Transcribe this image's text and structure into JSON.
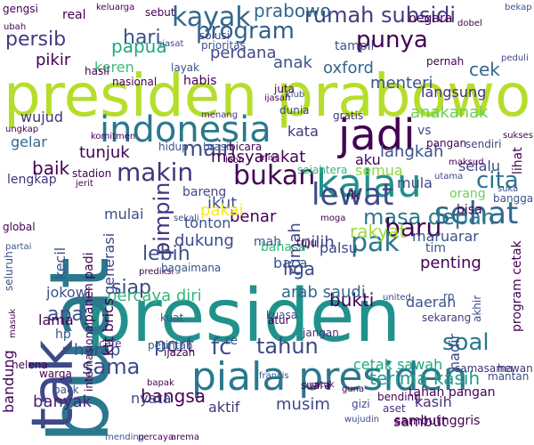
{
  "cloud": {
    "words": [
      {
        "text": "presiden prabowo",
        "color": "#b5de2b",
        "vertical": false
      },
      {
        "text": "presiden",
        "color": "#21918c",
        "vertical": false
      },
      {
        "text": "buat",
        "color": "#2a788e",
        "vertical": true
      },
      {
        "text": "piala presiden",
        "color": "#2a788e",
        "vertical": false
      },
      {
        "text": "indonesia",
        "color": "#2a788e",
        "vertical": false
      },
      {
        "text": "jadi",
        "color": "#440154",
        "vertical": false
      },
      {
        "text": "kalau",
        "color": "#21918c",
        "vertical": false
      },
      {
        "text": "tak",
        "color": "#3e4989",
        "vertical": true
      },
      {
        "text": "lewat",
        "color": "#3e4a89",
        "vertical": false
      },
      {
        "text": "sehat",
        "color": "#31688e",
        "vertical": false
      },
      {
        "text": "kayak",
        "color": "#31688e",
        "vertical": false
      },
      {
        "text": "rumah subsidi",
        "color": "#443a83",
        "vertical": false
      },
      {
        "text": "prabowo",
        "color": "#31688e",
        "vertical": false
      },
      {
        "text": "program",
        "color": "#355f8d",
        "vertical": false
      },
      {
        "text": "persib",
        "color": "#443983",
        "vertical": false
      },
      {
        "text": "hari",
        "color": "#3b528b",
        "vertical": false
      },
      {
        "text": "punya",
        "color": "#440154",
        "vertical": false
      },
      {
        "text": "makin",
        "color": "#46337e",
        "vertical": false
      },
      {
        "text": "main",
        "color": "#3e4a89",
        "vertical": false
      },
      {
        "text": "bukan",
        "color": "#440154",
        "vertical": false
      },
      {
        "text": "cita",
        "color": "#2c728e",
        "vertical": false
      },
      {
        "text": "masa depan",
        "color": "#2a788e",
        "vertical": false
      },
      {
        "text": "baru",
        "color": "#440154",
        "vertical": false
      },
      {
        "text": "pak",
        "color": "#2a788e",
        "vertical": false
      },
      {
        "text": "soal",
        "color": "#2a788e",
        "vertical": false
      },
      {
        "text": "lebih",
        "color": "#3b528b",
        "vertical": false
      },
      {
        "text": "siap",
        "color": "#3e4989",
        "vertical": false
      },
      {
        "text": "apa",
        "color": "#3b528b",
        "vertical": false
      },
      {
        "text": "sama",
        "color": "#3e4989",
        "vertical": false
      },
      {
        "text": "tahun",
        "color": "#3e4989",
        "vertical": false
      },
      {
        "text": "fc",
        "color": "#3b528b",
        "vertical": false
      },
      {
        "text": "port",
        "color": "#3b528b",
        "vertical": false
      },
      {
        "text": "bukti",
        "color": "#440154",
        "vertical": false
      },
      {
        "text": "dukung",
        "color": "#3e4989",
        "vertical": false
      },
      {
        "text": "rakyat",
        "color": "#9fda3a",
        "vertical": false
      },
      {
        "text": "percaya diri",
        "color": "#35b779",
        "vertical": false
      },
      {
        "text": "papua",
        "color": "#21a685",
        "vertical": false
      },
      {
        "text": "cek",
        "color": "#31688e",
        "vertical": false
      },
      {
        "text": "menteri",
        "color": "#3b528b",
        "vertical": false
      },
      {
        "text": "oxford",
        "color": "#31688e",
        "vertical": false
      },
      {
        "text": "langsung",
        "color": "#46337e",
        "vertical": false
      },
      {
        "text": "anakanak",
        "color": "#6ccd5a",
        "vertical": false
      },
      {
        "text": "baik",
        "color": "#440154",
        "vertical": false
      },
      {
        "text": "tunjuk",
        "color": "#440154",
        "vertical": false
      },
      {
        "text": "masyarakat",
        "color": "#440154",
        "vertical": false
      },
      {
        "text": "langkah",
        "color": "#3b528b",
        "vertical": false
      },
      {
        "text": "pikir",
        "color": "#440154",
        "vertical": false
      },
      {
        "text": "perdana",
        "color": "#3e4989",
        "vertical": false
      },
      {
        "text": "keren",
        "color": "#3dbc74",
        "vertical": false
      },
      {
        "text": "anak",
        "color": "#3b528b",
        "vertical": false
      },
      {
        "text": "kata",
        "color": "#46327e",
        "vertical": false
      },
      {
        "text": "aku",
        "color": "#440154",
        "vertical": false
      },
      {
        "text": "pimpin",
        "color": "#46327e",
        "vertical": true
      },
      {
        "text": "tonton",
        "color": "#3b528b",
        "vertical": false
      },
      {
        "text": "benar",
        "color": "#440154",
        "vertical": false
      },
      {
        "text": "pilih",
        "color": "#3e4a89",
        "vertical": false
      },
      {
        "text": "ikut",
        "color": "#3b528b",
        "vertical": false
      },
      {
        "text": "liga",
        "color": "#3e4989",
        "vertical": false
      },
      {
        "text": "arab saudi",
        "color": "#31688e",
        "vertical": false
      },
      {
        "text": "daerah",
        "color": "#3b528b",
        "vertical": false
      },
      {
        "text": "terima kasih",
        "color": "#1f9e89",
        "vertical": false
      },
      {
        "text": "cetak sawah",
        "color": "#22a785",
        "vertical": false
      },
      {
        "text": "musim",
        "color": "#3e4989",
        "vertical": false
      },
      {
        "text": "bangsa",
        "color": "#440154",
        "vertical": false
      },
      {
        "text": "harap",
        "color": "#3b528b",
        "vertical": false
      },
      {
        "text": "banyak",
        "color": "#482173",
        "vertical": false
      },
      {
        "text": "aktif",
        "color": "#46337e",
        "vertical": false
      },
      {
        "text": "sambut",
        "color": "#440154",
        "vertical": false
      },
      {
        "text": "lama",
        "color": "#440154",
        "vertical": false
      },
      {
        "text": "jokowi",
        "color": "#3b528b",
        "vertical": false
      },
      {
        "text": "wujud",
        "color": "#46337e",
        "vertical": false
      },
      {
        "text": "gelar",
        "color": "#31688e",
        "vertical": false
      },
      {
        "text": "lengkap",
        "color": "#46327e",
        "vertical": false
      },
      {
        "text": "mulai",
        "color": "#3e4a89",
        "vertical": false
      },
      {
        "text": "pakai",
        "color": "#fde725",
        "vertical": false
      },
      {
        "text": "bareng",
        "color": "#3e4989",
        "vertical": false
      },
      {
        "text": "bahasa",
        "color": "#35b779",
        "vertical": false
      },
      {
        "text": "rumah",
        "color": "#3e4989",
        "vertical": true
      },
      {
        "text": "palsu",
        "color": "#3e4989",
        "vertical": false
      },
      {
        "text": "maruarar",
        "color": "#3b528b",
        "vertical": false
      },
      {
        "text": "penting",
        "color": "#440154",
        "vertical": false
      },
      {
        "text": "tim",
        "color": "#3b528b",
        "vertical": false
      },
      {
        "text": "semua",
        "color": "#8fd744",
        "vertical": false
      },
      {
        "text": "selalu",
        "color": "#3e4989",
        "vertical": false
      },
      {
        "text": "orang",
        "color": "#6ece58",
        "vertical": false
      },
      {
        "text": "bisa",
        "color": "#440154",
        "vertical": false
      },
      {
        "text": "mula",
        "color": "#3e4989",
        "vertical": false
      },
      {
        "text": "vs",
        "color": "#3e4989",
        "vertical": false
      },
      {
        "text": "bandung",
        "color": "#440154",
        "vertical": true
      },
      {
        "text": "ktt brics",
        "color": "#440154",
        "vertical": true
      },
      {
        "text": "generasi",
        "color": "#3e4989",
        "vertical": true
      },
      {
        "text": "kecil",
        "color": "#3b528b",
        "vertical": true
      },
      {
        "text": "hadir",
        "color": "#3e4989",
        "vertical": true
      },
      {
        "text": "sejahtera",
        "color": "#35b779",
        "vertical": false
      },
      {
        "text": "baca",
        "color": "#3b528b",
        "vertical": false
      },
      {
        "text": "nyata",
        "color": "#3e4989",
        "vertical": false
      },
      {
        "text": "mah",
        "color": "#3b528b",
        "vertical": false
      },
      {
        "text": "tahan pangan",
        "color": "#440154",
        "vertical": false
      },
      {
        "text": "sekarang",
        "color": "#443983",
        "vertical": false
      },
      {
        "text": "hp",
        "color": "#3b528b",
        "vertical": false
      },
      {
        "text": "kasih",
        "color": "#46327e",
        "vertical": false
      },
      {
        "text": "re",
        "color": "#3b528b",
        "vertical": false
      },
      {
        "text": "kuat",
        "color": "#3b528b",
        "vertical": false
      },
      {
        "text": "perintah",
        "color": "#3b528b",
        "vertical": false
      },
      {
        "text": "aset",
        "color": "#46327e",
        "vertical": false
      },
      {
        "text": "tuju",
        "color": "#440154",
        "vertical": false
      },
      {
        "text": "jangan",
        "color": "#46327e",
        "vertical": false
      },
      {
        "text": "rp",
        "color": "#3b528b",
        "vertical": false
      },
      {
        "text": "sambut",
        "color": "#440154",
        "vertical": false
      },
      {
        "text": "inggris",
        "color": "#440154",
        "vertical": false
      },
      {
        "text": "mantan",
        "color": "#3e4989",
        "vertical": false
      },
      {
        "text": "samasama",
        "color": "#46327e",
        "vertical": false
      },
      {
        "text": "hewan",
        "color": "#46327e",
        "vertical": false
      },
      {
        "text": "cafe",
        "color": "#46327e",
        "vertical": false
      },
      {
        "text": "warga",
        "color": "#440154",
        "vertical": false
      },
      {
        "text": "helena",
        "color": "#440154",
        "vertical": false
      },
      {
        "text": "mending",
        "color": "#3b528b",
        "vertical": false
      },
      {
        "text": "percaya",
        "color": "#440154",
        "vertical": false
      },
      {
        "text": "arema",
        "color": "#440154",
        "vertical": false
      },
      {
        "text": "gizi",
        "color": "#3e4989",
        "vertical": false
      },
      {
        "text": "sukses",
        "color": "#440154",
        "vertical": false
      },
      {
        "text": "real",
        "color": "#440154",
        "vertical": false
      },
      {
        "text": "gengsi",
        "color": "#440154",
        "vertical": false
      },
      {
        "text": "keluarga",
        "color": "#440154",
        "vertical": false
      },
      {
        "text": "sebut",
        "color": "#440154",
        "vertical": false
      },
      {
        "text": "habis",
        "color": "#440154",
        "vertical": false
      },
      {
        "text": "tampil",
        "color": "#3b528b",
        "vertical": false
      },
      {
        "text": "solusi",
        "color": "#3e4989",
        "vertical": false
      },
      {
        "text": "siasat",
        "color": "#3e4989",
        "vertical": false
      },
      {
        "text": "prioritas",
        "color": "#3b528b",
        "vertical": false
      },
      {
        "text": "negara",
        "color": "#440154",
        "vertical": false
      },
      {
        "text": "pernah",
        "color": "#440154",
        "vertical": false
      },
      {
        "text": "peduli",
        "color": "#3e4989",
        "vertical": false
      },
      {
        "text": "hasil",
        "color": "#440154",
        "vertical": false
      },
      {
        "text": "nasional",
        "color": "#440154",
        "vertical": false
      },
      {
        "text": "juta",
        "color": "#440154",
        "vertical": false
      },
      {
        "text": "ijasah",
        "color": "#440154",
        "vertical": false
      },
      {
        "text": "klub",
        "color": "#3b528b",
        "vertical": false
      },
      {
        "text": "dunia",
        "color": "#3e4989",
        "vertical": false
      },
      {
        "text": "gratis",
        "color": "#46327e",
        "vertical": false
      },
      {
        "text": "menang",
        "color": "#46327e",
        "vertical": false
      },
      {
        "text": "komitmen",
        "color": "#440154",
        "vertical": false
      },
      {
        "text": "hidup",
        "color": "#3b528b",
        "vertical": false
      },
      {
        "text": "brasil",
        "color": "#3b528b",
        "vertical": false
      },
      {
        "text": "bicara",
        "color": "#440154",
        "vertical": false
      },
      {
        "text": "pangan",
        "color": "#440154",
        "vertical": false
      },
      {
        "text": "sendiri",
        "color": "#3e4989",
        "vertical": false
      },
      {
        "text": "stadion",
        "color": "#440154",
        "vertical": false
      },
      {
        "text": "jerit",
        "color": "#440154",
        "vertical": false
      },
      {
        "text": "misi",
        "color": "#440154",
        "vertical": false
      },
      {
        "text": "leon",
        "color": "#440154",
        "vertical": false
      },
      {
        "text": "maksud",
        "color": "#440154",
        "vertical": false
      },
      {
        "text": "utama",
        "color": "#3e4989",
        "vertical": false
      },
      {
        "text": "moga",
        "color": "#440154",
        "vertical": false
      },
      {
        "text": "sekali",
        "color": "#3e4989",
        "vertical": false
      },
      {
        "text": "prediksi",
        "color": "#440154",
        "vertical": false
      },
      {
        "text": "global",
        "color": "#440154",
        "vertical": false
      },
      {
        "text": "partai",
        "color": "#3b528b",
        "vertical": false
      },
      {
        "text": "bagaimana",
        "color": "#3b528b",
        "vertical": false
      },
      {
        "text": "kuasa",
        "color": "#3e4989",
        "vertical": false
      },
      {
        "text": "atur",
        "color": "#440154",
        "vertical": false
      },
      {
        "text": "suara",
        "color": "#440154",
        "vertical": false
      },
      {
        "text": "francis",
        "color": "#3b528b",
        "vertical": false
      },
      {
        "text": "ijazah",
        "color": "#440154",
        "vertical": false
      },
      {
        "text": "back",
        "color": "#3b528b",
        "vertical": false
      },
      {
        "text": "bapak",
        "color": "#440154",
        "vertical": false
      },
      {
        "text": "bekap",
        "color": "#3b528b",
        "vertical": false
      },
      {
        "text": "internasional",
        "color": "#440154",
        "vertical": true
      },
      {
        "text": "panen padi",
        "color": "#440154",
        "vertical": true
      },
      {
        "text": "akhir",
        "color": "#3e4989",
        "vertical": true
      },
      {
        "text": "seluruh",
        "color": "#3b528b",
        "vertical": true
      },
      {
        "text": "lihat",
        "color": "#440154",
        "vertical": true
      },
      {
        "text": "program cetak",
        "color": "#440154",
        "vertical": true
      },
      {
        "text": "bangga",
        "color": "#3b528b",
        "vertical": false
      },
      {
        "text": "suka",
        "color": "#3b528b",
        "vertical": false
      },
      {
        "text": "masuk",
        "color": "#440154",
        "vertical": true
      },
      {
        "text": "guna",
        "color": "#440154",
        "vertical": false
      },
      {
        "text": "untuk",
        "color": "#440154",
        "vertical": false
      },
      {
        "text": "wujudin",
        "color": "#3e4989",
        "vertical": false
      },
      {
        "text": "bending",
        "color": "#440154",
        "vertical": false
      },
      {
        "text": "rik",
        "color": "#440154",
        "vertical": false
      },
      {
        "text": "ubah",
        "color": "#440154",
        "vertical": false
      },
      {
        "text": "ungkap",
        "color": "#440154",
        "vertical": false
      },
      {
        "text": "layak",
        "color": "#3b528b",
        "vertical": false
      },
      {
        "text": "dobel",
        "color": "#440154",
        "vertical": false
      },
      {
        "text": "united",
        "color": "#3e4989",
        "vertical": false
      }
    ]
  }
}
